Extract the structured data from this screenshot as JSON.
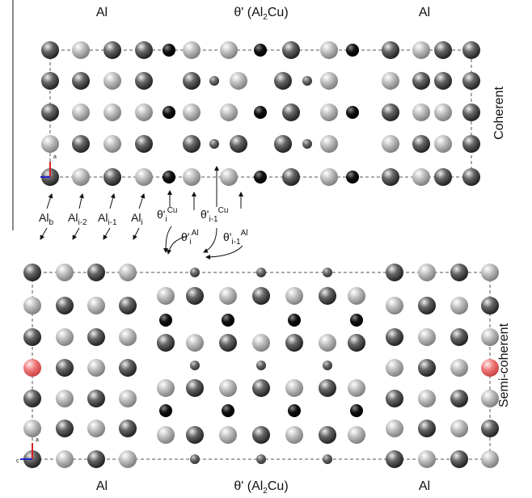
{
  "panels": [
    {
      "left_label": "Al",
      "middle_label": {
        "text": "θ' (Al",
        "sub": "2",
        "tail": "Cu)"
      },
      "right_label": "Al",
      "side_label": "Coherent",
      "axis_labels": [
        "a"
      ]
    },
    {
      "left_label": "Al",
      "middle_label": {
        "text": "θ' (Al",
        "sub": "2",
        "tail": "Cu)"
      },
      "right_label": "Al",
      "side_label": "Semi-coherent",
      "axis_labels": [
        "a",
        "c"
      ]
    }
  ],
  "layer_labels": [
    {
      "base": "Al",
      "sub": "b"
    },
    {
      "base": "Al",
      "sub": "i-2"
    },
    {
      "base": "Al",
      "sub": "i-1"
    },
    {
      "base": "Al",
      "sub": "i"
    },
    {
      "base": "θ'",
      "sub": "i",
      "sup": "Cu"
    },
    {
      "base": "θ'",
      "sub": "i-1",
      "sup": "Cu"
    },
    {
      "base": "θ'",
      "sub": "i",
      "sup": "Al"
    },
    {
      "base": "θ'",
      "sub": "i-1",
      "sup": "Al"
    }
  ]
}
